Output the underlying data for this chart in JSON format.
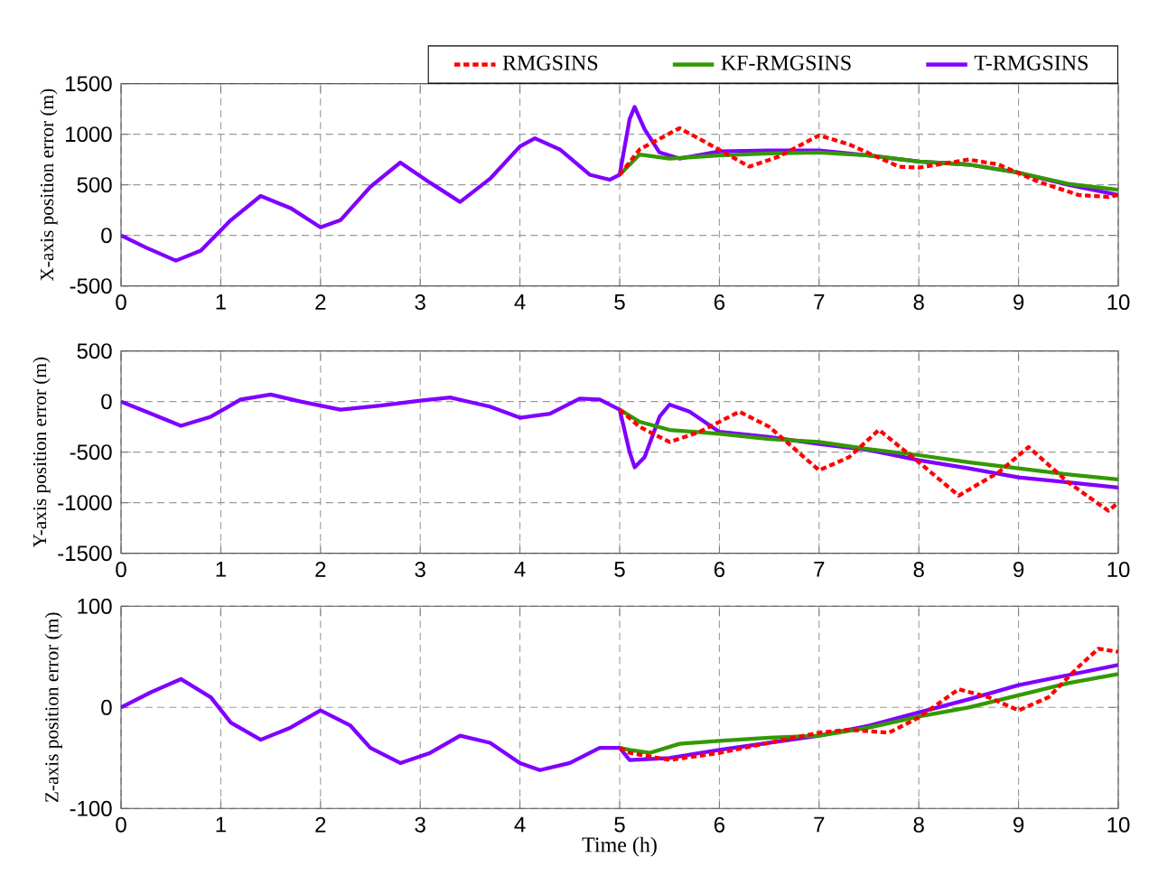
{
  "chart_data": [
    {
      "type": "line",
      "ylabel": "X-axis position error (m)",
      "xlim": [
        0,
        10
      ],
      "xticks": [
        0,
        1,
        2,
        3,
        4,
        5,
        6,
        7,
        8,
        9,
        10
      ],
      "ylim": [
        -500,
        1500
      ],
      "yticks": [
        -500,
        0,
        500,
        1000,
        1500
      ],
      "grid": true,
      "legend": "top",
      "series": [
        {
          "name": "RMGSINS",
          "color": "#ff0000",
          "line_style": "dashed",
          "x": [
            5.0,
            5.2,
            5.6,
            5.9,
            6.3,
            6.6,
            7.0,
            7.3,
            7.8,
            8.0,
            8.5,
            8.8,
            9.2,
            9.6,
            9.9,
            10
          ],
          "values": [
            600,
            850,
            1060,
            900,
            680,
            780,
            990,
            900,
            680,
            670,
            750,
            700,
            530,
            400,
            380,
            400
          ]
        },
        {
          "name": "KF-RMGSINS",
          "color": "#339900",
          "line_style": "solid",
          "x": [
            5.0,
            5.2,
            5.5,
            6.0,
            6.5,
            7.0,
            7.5,
            8.0,
            8.5,
            9.0,
            9.5,
            10
          ],
          "values": [
            600,
            800,
            760,
            790,
            810,
            820,
            790,
            730,
            700,
            620,
            510,
            450
          ]
        },
        {
          "name": "T-RMGSINS",
          "color": "#8000ff",
          "line_style": "solid",
          "x": [
            0,
            0.25,
            0.55,
            0.8,
            1.1,
            1.4,
            1.7,
            2.0,
            2.2,
            2.5,
            2.8,
            3.1,
            3.4,
            3.7,
            4.0,
            4.15,
            4.4,
            4.7,
            4.9,
            5.0,
            5.1,
            5.15,
            5.25,
            5.4,
            5.6,
            6.0,
            6.5,
            7.0,
            7.5,
            8.0,
            8.5,
            9.0,
            9.5,
            10
          ],
          "values": [
            0,
            -120,
            -250,
            -150,
            150,
            390,
            270,
            80,
            150,
            480,
            720,
            520,
            330,
            560,
            880,
            960,
            850,
            600,
            550,
            600,
            1150,
            1270,
            1050,
            820,
            760,
            830,
            840,
            840,
            790,
            730,
            700,
            620,
            500,
            400
          ]
        }
      ]
    },
    {
      "type": "line",
      "ylabel": "Y-axis position error (m)",
      "xlim": [
        0,
        10
      ],
      "xticks": [
        0,
        1,
        2,
        3,
        4,
        5,
        6,
        7,
        8,
        9,
        10
      ],
      "ylim": [
        -1500,
        500
      ],
      "yticks": [
        -1500,
        -1000,
        -500,
        0,
        500
      ],
      "grid": true,
      "series": [
        {
          "color": "#ff0000",
          "line_style": "dashed",
          "x": [
            5.0,
            5.2,
            5.5,
            5.8,
            6.2,
            6.5,
            7.0,
            7.3,
            7.6,
            8.0,
            8.4,
            8.8,
            9.1,
            9.5,
            9.9,
            10
          ],
          "values": [
            -80,
            -250,
            -400,
            -300,
            -100,
            -250,
            -680,
            -550,
            -280,
            -600,
            -930,
            -700,
            -450,
            -800,
            -1080,
            -1000
          ]
        },
        {
          "color": "#339900",
          "line_style": "solid",
          "x": [
            5.0,
            5.2,
            5.5,
            6.0,
            6.5,
            7.0,
            7.5,
            8.0,
            8.5,
            9.0,
            9.5,
            10
          ],
          "values": [
            -80,
            -200,
            -280,
            -320,
            -370,
            -400,
            -470,
            -530,
            -600,
            -660,
            -720,
            -770
          ]
        },
        {
          "color": "#8000ff",
          "line_style": "solid",
          "x": [
            0,
            0.3,
            0.6,
            0.9,
            1.2,
            1.5,
            1.8,
            2.2,
            2.6,
            3.0,
            3.3,
            3.7,
            4.0,
            4.3,
            4.6,
            4.8,
            5.0,
            5.1,
            5.15,
            5.25,
            5.4,
            5.5,
            5.7,
            6.0,
            6.5,
            7.0,
            7.5,
            8.0,
            8.5,
            9.0,
            9.5,
            10
          ],
          "values": [
            0,
            -120,
            -240,
            -150,
            20,
            70,
            0,
            -80,
            -40,
            10,
            40,
            -50,
            -160,
            -120,
            30,
            20,
            -80,
            -500,
            -650,
            -550,
            -150,
            -30,
            -100,
            -300,
            -350,
            -420,
            -480,
            -580,
            -660,
            -750,
            -800,
            -850
          ]
        }
      ]
    },
    {
      "type": "line",
      "xlabel": "Time (h)",
      "ylabel": "Z-axis position error (m)",
      "xlim": [
        0,
        10
      ],
      "xticks": [
        0,
        1,
        2,
        3,
        4,
        5,
        6,
        7,
        8,
        9,
        10
      ],
      "ylim": [
        -100,
        100
      ],
      "yticks": [
        -100,
        0,
        100
      ],
      "grid": true,
      "series": [
        {
          "color": "#ff0000",
          "line_style": "dashed",
          "x": [
            5.0,
            5.1,
            5.5,
            6.0,
            6.5,
            7.0,
            7.3,
            7.7,
            8.0,
            8.4,
            8.7,
            9.0,
            9.3,
            9.6,
            9.8,
            10
          ],
          "values": [
            -40,
            -45,
            -52,
            -45,
            -35,
            -25,
            -22,
            -25,
            -10,
            18,
            10,
            -3,
            10,
            40,
            58,
            55
          ]
        },
        {
          "color": "#339900",
          "line_style": "solid",
          "x": [
            5.0,
            5.1,
            5.3,
            5.6,
            6.0,
            6.5,
            7.0,
            7.5,
            8.0,
            8.5,
            9.0,
            9.5,
            10
          ],
          "values": [
            -40,
            -42,
            -45,
            -36,
            -33,
            -30,
            -28,
            -20,
            -9,
            0,
            12,
            24,
            33
          ]
        },
        {
          "color": "#8000ff",
          "line_style": "solid",
          "x": [
            0,
            0.3,
            0.6,
            0.9,
            1.1,
            1.4,
            1.7,
            2.0,
            2.3,
            2.5,
            2.8,
            3.1,
            3.4,
            3.7,
            4.0,
            4.2,
            4.5,
            4.8,
            5.0,
            5.1,
            5.5,
            6.0,
            6.5,
            7.0,
            7.5,
            8.0,
            8.5,
            9.0,
            9.5,
            10
          ],
          "values": [
            0,
            15,
            28,
            10,
            -15,
            -32,
            -20,
            -3,
            -18,
            -40,
            -55,
            -45,
            -28,
            -35,
            -55,
            -62,
            -55,
            -40,
            -40,
            -52,
            -50,
            -42,
            -35,
            -28,
            -18,
            -5,
            8,
            22,
            32,
            42
          ]
        }
      ]
    }
  ]
}
